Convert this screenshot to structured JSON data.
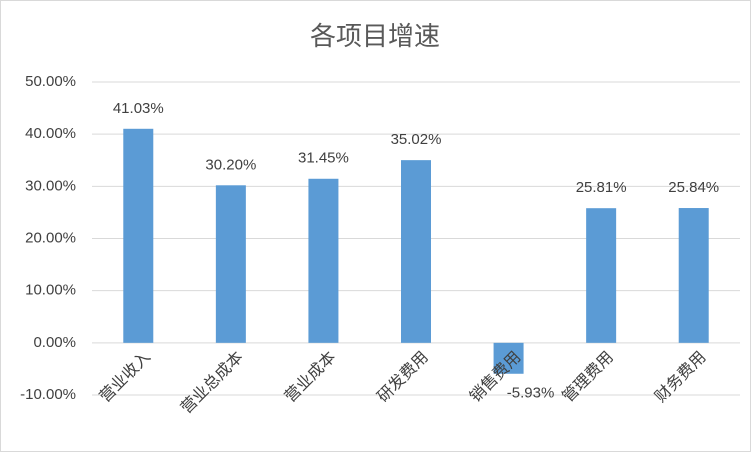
{
  "chart_data": {
    "type": "bar",
    "title": "各项目增速",
    "categories": [
      "营业收入",
      "营业总成本",
      "营业成本",
      "研发费用",
      "销售费用",
      "管理费用",
      "财务费用"
    ],
    "values": [
      41.03,
      30.2,
      31.45,
      35.02,
      -5.93,
      25.81,
      25.84
    ],
    "value_labels": [
      "41.03%",
      "30.20%",
      "31.45%",
      "35.02%",
      "-5.93%",
      "25.81%",
      "25.84%"
    ],
    "color": "#5b9bd5",
    "ylim": [
      -10,
      50
    ],
    "yticks": [
      {
        "value": -10,
        "label": "-10.00%"
      },
      {
        "value": 0,
        "label": "0.00%"
      },
      {
        "value": 10,
        "label": "10.00%"
      },
      {
        "value": 20,
        "label": "20.00%"
      },
      {
        "value": 30,
        "label": "30.00%"
      },
      {
        "value": 40,
        "label": "40.00%"
      },
      {
        "value": 50,
        "label": "50.00%"
      }
    ],
    "grid": true
  }
}
